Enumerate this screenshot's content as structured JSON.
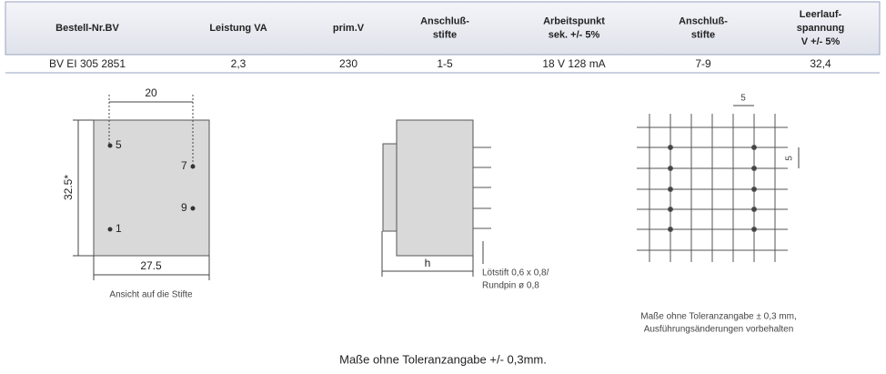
{
  "table": {
    "headers": [
      [
        "Bestell-Nr.BV"
      ],
      [
        "Leistung VA"
      ],
      [
        "prim.V"
      ],
      [
        "Anschluß-",
        "stifte"
      ],
      [
        "Arbeitspunkt",
        "sek. +/- 5%"
      ],
      [
        "Anschluß-",
        "stifte"
      ],
      [
        "Leerlauf-",
        "spannung",
        "V +/- 5%"
      ]
    ],
    "rows": [
      [
        "BV EI 305 2851",
        "2,3",
        "230",
        "1-5",
        "18 V 128 mA",
        "7-9",
        "32,4"
      ]
    ]
  },
  "pin_view": {
    "width_pins": "20",
    "height": "32.5*",
    "width": "27.5",
    "pins": [
      "5",
      "7",
      "9",
      "1"
    ],
    "caption": "Ansicht auf die Stifte"
  },
  "side_view": {
    "height": "h",
    "note": [
      "Lötstift 0,6 x 0,8/",
      "Rundpin ø 0,8"
    ]
  },
  "grid_view": {
    "pitch_x": "5",
    "pitch_y": "5",
    "note": [
      "Maße ohne Toleranzangabe ± 0,3 mm,",
      "Ausführungsänderungen vorbehalten"
    ]
  },
  "footer": "Maße ohne Toleranzangabe +/- 0,3mm."
}
